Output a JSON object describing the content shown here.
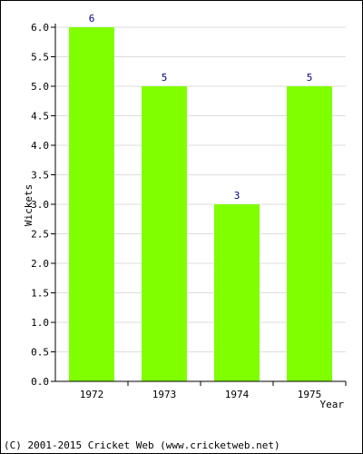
{
  "chart_data": {
    "type": "bar",
    "categories": [
      "1972",
      "1973",
      "1974",
      "1975"
    ],
    "values": [
      6,
      5,
      3,
      5
    ],
    "data_labels": [
      "6",
      "5",
      "3",
      "5"
    ],
    "title": "",
    "xlabel": "Year",
    "ylabel": "Wickets",
    "ylim": [
      0,
      6
    ],
    "yticks": [
      "0.0",
      "0.5",
      "1.0",
      "1.5",
      "2.0",
      "2.5",
      "3.0",
      "3.5",
      "4.0",
      "4.5",
      "5.0",
      "5.5",
      "6.0"
    ],
    "grid": "horizontal",
    "bar_color": "#80ff00",
    "data_label_color": "#000080",
    "grid_color": "#dddddd"
  },
  "footer": {
    "copyright": "(C) 2001-2015 Cricket Web (www.cricketweb.net)"
  }
}
